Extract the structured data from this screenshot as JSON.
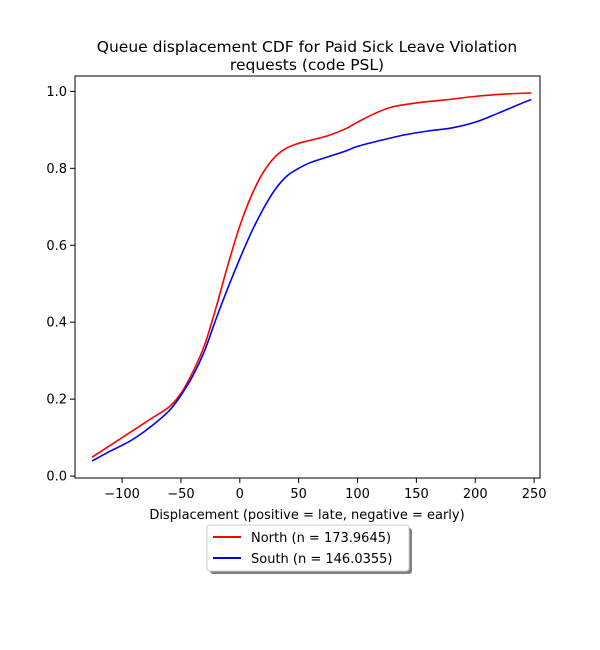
{
  "chart_data": {
    "type": "line",
    "title_lines": [
      "Queue displacement CDF for Paid Sick Leave Violation",
      "requests (code PSL)"
    ],
    "xlabel": "Displacement (positive = late, negative = early)",
    "ylabel": "",
    "xlim": [
      -140,
      255
    ],
    "ylim": [
      -0.005,
      1.04
    ],
    "x_ticks": [
      -100,
      -50,
      0,
      50,
      100,
      150,
      200,
      250
    ],
    "x_tick_labels": [
      "−100",
      "−50",
      "0",
      "50",
      "100",
      "150",
      "200",
      "250"
    ],
    "y_ticks": [
      0.0,
      0.2,
      0.4,
      0.6,
      0.8,
      1.0
    ],
    "y_tick_labels": [
      "0.0",
      "0.2",
      "0.4",
      "0.6",
      "0.8",
      "1.0"
    ],
    "grid": false,
    "legend_position": "below",
    "series": [
      {
        "name": "North (n = 173.9645)",
        "color": "#ff0000",
        "points": [
          [
            -125,
            0.05
          ],
          [
            -110,
            0.08
          ],
          [
            -100,
            0.1
          ],
          [
            -90,
            0.12
          ],
          [
            -75,
            0.15
          ],
          [
            -60,
            0.18
          ],
          [
            -50,
            0.215
          ],
          [
            -40,
            0.27
          ],
          [
            -30,
            0.34
          ],
          [
            -20,
            0.44
          ],
          [
            -10,
            0.55
          ],
          [
            0,
            0.65
          ],
          [
            10,
            0.73
          ],
          [
            20,
            0.79
          ],
          [
            30,
            0.83
          ],
          [
            40,
            0.853
          ],
          [
            50,
            0.865
          ],
          [
            60,
            0.873
          ],
          [
            75,
            0.885
          ],
          [
            90,
            0.903
          ],
          [
            100,
            0.92
          ],
          [
            115,
            0.943
          ],
          [
            130,
            0.96
          ],
          [
            150,
            0.97
          ],
          [
            175,
            0.978
          ],
          [
            200,
            0.987
          ],
          [
            225,
            0.993
          ],
          [
            247,
            0.996
          ]
        ]
      },
      {
        "name": "South (n = 146.0355)",
        "color": "#0000ff",
        "points": [
          [
            -125,
            0.04
          ],
          [
            -110,
            0.065
          ],
          [
            -100,
            0.08
          ],
          [
            -90,
            0.097
          ],
          [
            -75,
            0.13
          ],
          [
            -60,
            0.17
          ],
          [
            -50,
            0.21
          ],
          [
            -40,
            0.26
          ],
          [
            -30,
            0.325
          ],
          [
            -20,
            0.41
          ],
          [
            -10,
            0.49
          ],
          [
            0,
            0.565
          ],
          [
            10,
            0.635
          ],
          [
            20,
            0.695
          ],
          [
            30,
            0.745
          ],
          [
            40,
            0.78
          ],
          [
            50,
            0.8
          ],
          [
            60,
            0.815
          ],
          [
            75,
            0.83
          ],
          [
            90,
            0.845
          ],
          [
            100,
            0.857
          ],
          [
            120,
            0.873
          ],
          [
            140,
            0.887
          ],
          [
            160,
            0.897
          ],
          [
            180,
            0.905
          ],
          [
            200,
            0.92
          ],
          [
            220,
            0.944
          ],
          [
            237,
            0.966
          ],
          [
            247,
            0.978
          ]
        ]
      }
    ]
  }
}
